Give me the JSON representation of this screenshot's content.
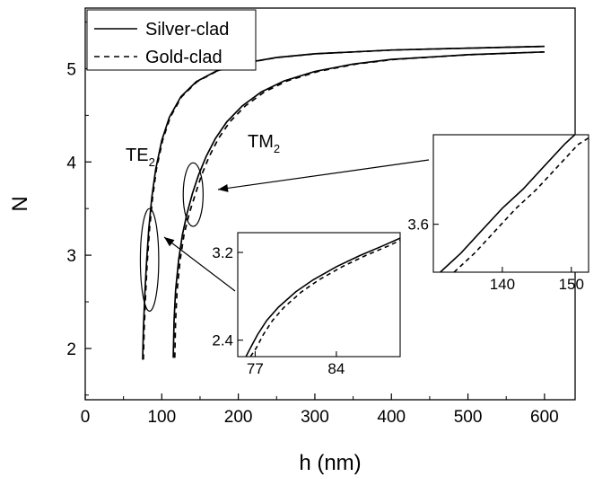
{
  "chart_data": {
    "type": "line",
    "title": "",
    "xlabel": "h (nm)",
    "ylabel": "N",
    "xlim": [
      0,
      640
    ],
    "ylim": [
      1.45,
      5.65
    ],
    "xticks": [
      0,
      100,
      200,
      300,
      400,
      500,
      600
    ],
    "yticks": [
      2,
      3,
      4,
      5
    ],
    "grid": false,
    "legend": {
      "position": "top-left",
      "entries": [
        "Silver-clad",
        "Gold-clad"
      ]
    },
    "series": [
      {
        "name": "Silver-clad",
        "mode": "TE2",
        "line": "solid",
        "x": [
          75,
          76,
          78,
          80,
          83,
          87,
          92,
          100,
          110,
          125,
          145,
          170,
          200,
          250,
          300,
          400,
          500,
          600
        ],
        "y": [
          1.88,
          2.2,
          2.6,
          2.92,
          3.28,
          3.62,
          3.92,
          4.23,
          4.48,
          4.7,
          4.86,
          4.97,
          5.05,
          5.12,
          5.16,
          5.2,
          5.22,
          5.24
        ]
      },
      {
        "name": "Gold-clad",
        "mode": "TE2",
        "line": "dashed",
        "x": [
          76,
          77,
          79,
          81,
          84,
          88,
          93,
          101,
          111,
          126,
          146,
          171,
          201,
          251,
          301,
          401,
          501,
          600
        ],
        "y": [
          1.88,
          2.2,
          2.6,
          2.92,
          3.28,
          3.62,
          3.92,
          4.23,
          4.48,
          4.7,
          4.86,
          4.97,
          5.05,
          5.12,
          5.16,
          5.2,
          5.22,
          5.24
        ]
      },
      {
        "name": "Silver-clad",
        "mode": "TM2",
        "line": "solid",
        "x": [
          115,
          116,
          118,
          122,
          127,
          133,
          140,
          148,
          158,
          170,
          185,
          205,
          230,
          260,
          300,
          350,
          400,
          500,
          600
        ],
        "y": [
          1.9,
          2.3,
          2.62,
          2.95,
          3.22,
          3.45,
          3.66,
          3.86,
          4.06,
          4.25,
          4.43,
          4.6,
          4.75,
          4.87,
          4.97,
          5.05,
          5.1,
          5.15,
          5.18
        ]
      },
      {
        "name": "Gold-clad",
        "mode": "TM2",
        "line": "dashed",
        "x": [
          117,
          118,
          120,
          124,
          129,
          136,
          144,
          152,
          162,
          174,
          189,
          209,
          234,
          264,
          304,
          354,
          404,
          502,
          600
        ],
        "y": [
          1.9,
          2.3,
          2.62,
          2.95,
          3.22,
          3.45,
          3.66,
          3.86,
          4.06,
          4.25,
          4.43,
          4.6,
          4.75,
          4.87,
          4.97,
          5.05,
          5.1,
          5.15,
          5.18
        ]
      }
    ],
    "annotations": {
      "te_label": "TE",
      "te_sub": "2",
      "tm_label": "TM",
      "tm_sub": "2",
      "ellipse_te": {
        "cx": 84,
        "cy": 2.95,
        "rx": 12,
        "ry": 0.55
      },
      "ellipse_tm": {
        "cx": 141,
        "cy": 3.65,
        "rx": 13,
        "ry": 0.34
      }
    },
    "insets": [
      {
        "name": "inset-te",
        "xlim": [
          75.5,
          89.5
        ],
        "ylim": [
          2.25,
          3.38
        ],
        "xticks": [
          77,
          84
        ],
        "yticks": [
          2.4,
          3.2
        ],
        "series": [
          {
            "line": "solid",
            "x": [
              76.2,
              76.6,
              77.2,
              78,
              79,
              80.5,
              82,
              84,
              86,
              88,
              89.5
            ],
            "y": [
              2.25,
              2.33,
              2.45,
              2.58,
              2.7,
              2.84,
              2.95,
              3.07,
              3.17,
              3.26,
              3.33
            ]
          },
          {
            "line": "dashed",
            "x": [
              76.6,
              77.1,
              77.7,
              78.5,
              79.5,
              81,
              82.5,
              84.5,
              86.5,
              88.5,
              89.5
            ],
            "y": [
              2.25,
              2.33,
              2.45,
              2.58,
              2.7,
              2.84,
              2.95,
              3.07,
              3.17,
              3.26,
              3.31
            ]
          }
        ]
      },
      {
        "name": "inset-tm",
        "xlim": [
          130,
          152.5
        ],
        "ylim": [
          3.45,
          3.88
        ],
        "xticks": [
          140,
          150
        ],
        "yticks": [
          3.6
        ],
        "series": [
          {
            "line": "solid",
            "x": [
              131,
              134,
              137,
              140,
              143,
              146,
              149,
              150.5
            ],
            "y": [
              3.45,
              3.51,
              3.58,
              3.65,
              3.71,
              3.78,
              3.85,
              3.88
            ]
          },
          {
            "line": "dashed",
            "x": [
              133,
              136,
              139,
              142,
              145,
              148,
              151,
              152.5
            ],
            "y": [
              3.45,
              3.51,
              3.58,
              3.65,
              3.71,
              3.78,
              3.85,
              3.87
            ]
          }
        ]
      }
    ]
  }
}
